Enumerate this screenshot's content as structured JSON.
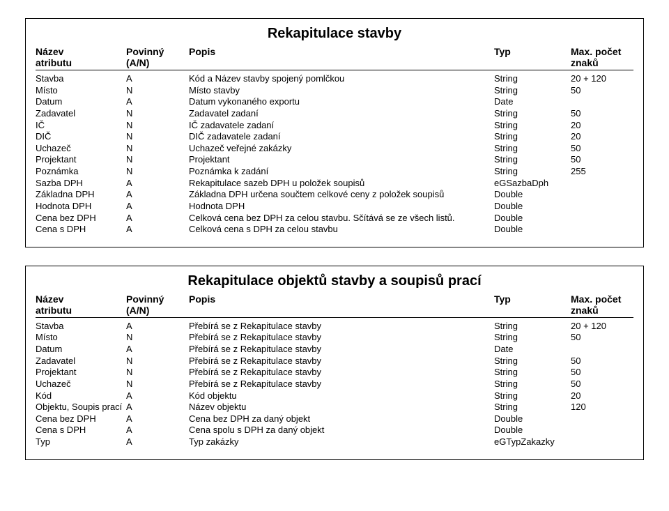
{
  "section1": {
    "title": "Rekapitulace stavby",
    "header": {
      "nazev1": "Název",
      "nazev2": "atributu",
      "pov1": "Povinný",
      "pov2": "(A/N)",
      "popis": "Popis",
      "typ": "Typ",
      "max1": "Max. počet",
      "max2": "znaků"
    },
    "rows": [
      {
        "a": "Stavba",
        "p": "A",
        "d": "Kód a Název stavby spojený pomlčkou",
        "t": "String",
        "m": "20 + 120"
      },
      {
        "a": "Místo",
        "p": "N",
        "d": "Místo stavby",
        "t": "String",
        "m": "50"
      },
      {
        "a": "Datum",
        "p": "A",
        "d": "Datum vykonaného exportu",
        "t": "Date",
        "m": ""
      },
      {
        "a": "Zadavatel",
        "p": "N",
        "d": "Zadavatel zadaní",
        "t": "String",
        "m": "50"
      },
      {
        "a": "IČ",
        "p": "N",
        "d": "IČ zadavatele zadaní",
        "t": "String",
        "m": "20"
      },
      {
        "a": "DIČ",
        "p": "N",
        "d": "DIČ zadavatele zadaní",
        "t": "String",
        "m": "20"
      },
      {
        "a": "Uchazeč",
        "p": "N",
        "d": "Uchazeč veřejné zakázky",
        "t": "String",
        "m": "50"
      },
      {
        "a": "Projektant",
        "p": "N",
        "d": "Projektant",
        "t": "String",
        "m": "50"
      },
      {
        "a": "Poznámka",
        "p": "N",
        "d": "Poznámka k zadání",
        "t": "String",
        "m": "255"
      },
      {
        "a": "Sazba DPH",
        "p": "A",
        "d": "Rekapitulace sazeb DPH u položek soupisů",
        "t": "eGSazbaDph",
        "m": ""
      },
      {
        "a": "Základna DPH",
        "p": "A",
        "d": "Základna DPH určena součtem celkové ceny z položek soupisů",
        "t": "Double",
        "m": ""
      },
      {
        "a": "Hodnota DPH",
        "p": "A",
        "d": "Hodnota DPH",
        "t": "Double",
        "m": ""
      },
      {
        "a": "Cena bez DPH",
        "p": "A",
        "d": "Celková cena bez DPH za celou stavbu. Sčítává se ze všech listů.",
        "t": "Double",
        "m": ""
      },
      {
        "a": "Cena s DPH",
        "p": "A",
        "d": "Celková cena s DPH za celou stavbu",
        "t": "Double",
        "m": ""
      }
    ]
  },
  "section2": {
    "title": "Rekapitulace objektů stavby a soupisů prací",
    "header": {
      "nazev1": "Název",
      "nazev2": "atributu",
      "pov1": "Povinný",
      "pov2": "(A/N)",
      "popis": "Popis",
      "typ": "Typ",
      "max1": "Max. počet",
      "max2": "znaků"
    },
    "rows": [
      {
        "a": "Stavba",
        "p": "A",
        "d": "Přebírá se z Rekapitulace stavby",
        "t": "String",
        "m": "20 + 120"
      },
      {
        "a": "Místo",
        "p": "N",
        "d": "Přebírá se z Rekapitulace stavby",
        "t": "String",
        "m": "50"
      },
      {
        "a": "Datum",
        "p": "A",
        "d": "Přebírá se z Rekapitulace stavby",
        "t": "Date",
        "m": ""
      },
      {
        "a": "Zadavatel",
        "p": "N",
        "d": "Přebírá se z Rekapitulace stavby",
        "t": "String",
        "m": "50"
      },
      {
        "a": "Projektant",
        "p": "N",
        "d": "Přebírá se z Rekapitulace stavby",
        "t": "String",
        "m": "50"
      },
      {
        "a": "Uchazeč",
        "p": "N",
        "d": "Přebírá se z Rekapitulace stavby",
        "t": "String",
        "m": "50"
      },
      {
        "a": "Kód",
        "p": "A",
        "d": "Kód objektu",
        "t": "String",
        "m": "20"
      },
      {
        "a": "Objektu, Soupis prací",
        "p": "A",
        "d": "Název objektu",
        "t": "String",
        "m": "120"
      },
      {
        "a": "Cena bez DPH",
        "p": "A",
        "d": "Cena bez DPH za daný objekt",
        "t": "Double",
        "m": ""
      },
      {
        "a": "Cena s DPH",
        "p": "A",
        "d": "Cena spolu s DPH za daný objekt",
        "t": "Double",
        "m": ""
      },
      {
        "a": "Typ",
        "p": "A",
        "d": "Typ zakázky",
        "t": "eGTypZakazky",
        "m": ""
      }
    ]
  }
}
